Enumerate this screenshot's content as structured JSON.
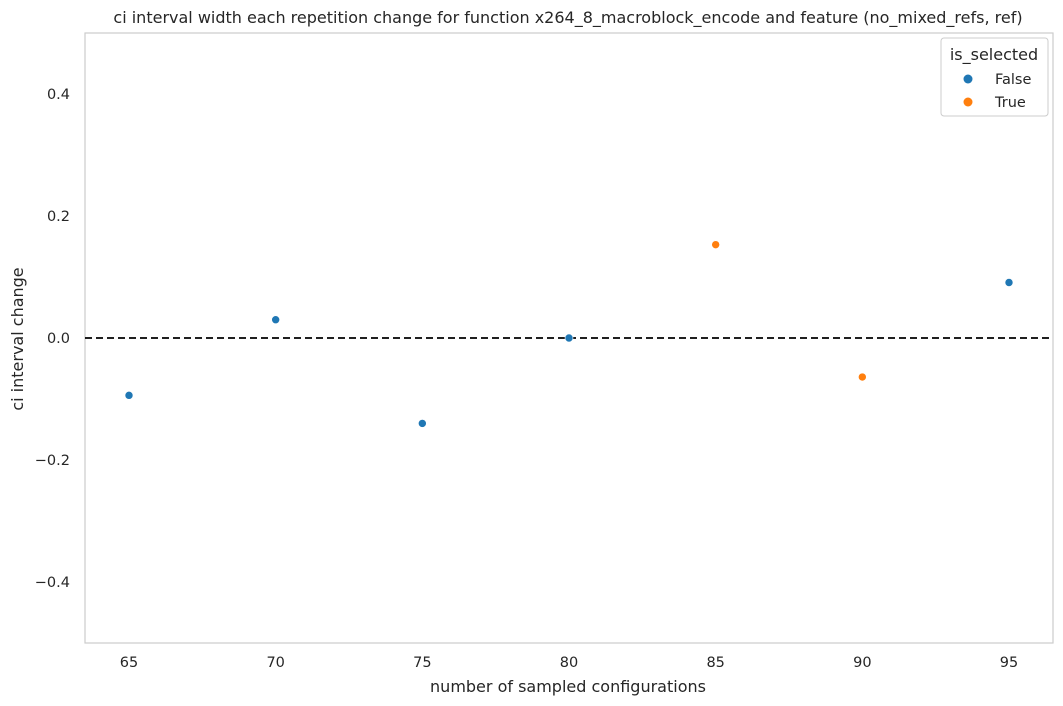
{
  "chart_data": {
    "type": "scatter",
    "title": "ci interval width each repetition change for function x264_8_macroblock_encode and feature (no_mixed_refs, ref)",
    "xlabel": "number of sampled configurations",
    "ylabel": "ci interval change",
    "xlim": [
      63.5,
      96.5
    ],
    "ylim": [
      -0.5,
      0.5
    ],
    "x_ticks": [
      65,
      70,
      75,
      80,
      85,
      90,
      95
    ],
    "y_ticks": [
      -0.4,
      -0.2,
      0.0,
      0.2,
      0.4
    ],
    "y_tick_labels": [
      "−0.4",
      "−0.2",
      "0.0",
      "0.2",
      "0.4"
    ],
    "x_tick_labels": [
      "65",
      "70",
      "75",
      "80",
      "85",
      "90",
      "95"
    ],
    "reference_line": {
      "y": 0.0,
      "style": "dashed",
      "color": "#000000"
    },
    "grid": false,
    "legend": {
      "title": "is_selected",
      "placement": "top-right"
    },
    "series": [
      {
        "name": "False",
        "color": "#1f77b4",
        "points": [
          {
            "x": 65,
            "y": -0.094
          },
          {
            "x": 70,
            "y": 0.03
          },
          {
            "x": 75,
            "y": -0.14
          },
          {
            "x": 80,
            "y": 0.0
          },
          {
            "x": 95,
            "y": 0.091
          }
        ]
      },
      {
        "name": "True",
        "color": "#ff7f0e",
        "points": [
          {
            "x": 85,
            "y": 0.153
          },
          {
            "x": 90,
            "y": -0.064
          }
        ]
      }
    ]
  }
}
